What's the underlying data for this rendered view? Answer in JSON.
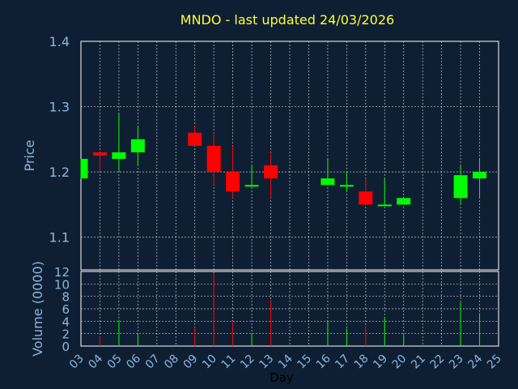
{
  "chart_data": {
    "type": "candlestick",
    "title": "MNDO - last updated 24/03/2026",
    "price_panel": {
      "ylabel": "Price",
      "ylim": [
        1.05,
        1.4
      ],
      "yticks": [
        "1.1",
        "1.2",
        "1.3",
        "1.4"
      ]
    },
    "volume_panel": {
      "ylabel": "Volume (0000)",
      "ylim": [
        0,
        12
      ],
      "yticks": [
        "0",
        "2",
        "4",
        "6",
        "8",
        "10",
        "12"
      ]
    },
    "xlabel": "Day",
    "x_tick_labels": [
      "03",
      "04",
      "05",
      "06",
      "07",
      "08",
      "09",
      "10",
      "11",
      "12",
      "13",
      "14",
      "15",
      "16",
      "17",
      "18",
      "19",
      "20",
      "21",
      "22",
      "23",
      "24",
      "25"
    ],
    "candles": [
      {
        "day": "03",
        "open": 1.19,
        "high": 1.22,
        "low": 1.19,
        "close": 1.22,
        "volume": 0.0
      },
      {
        "day": "04",
        "open": 1.23,
        "high": 1.23,
        "low": 1.2,
        "close": 1.225,
        "volume": 1.6
      },
      {
        "day": "05",
        "open": 1.22,
        "high": 1.29,
        "low": 1.2,
        "close": 1.23,
        "volume": 4.2
      },
      {
        "day": "06",
        "open": 1.23,
        "high": 1.27,
        "low": 1.21,
        "close": 1.25,
        "volume": 2.1
      },
      {
        "day": "09",
        "open": 1.26,
        "high": 1.27,
        "low": 1.24,
        "close": 1.24,
        "volume": 3.0
      },
      {
        "day": "10",
        "open": 1.24,
        "high": 1.26,
        "low": 1.18,
        "close": 1.2,
        "volume": 11.7
      },
      {
        "day": "11",
        "open": 1.2,
        "high": 1.24,
        "low": 1.16,
        "close": 1.17,
        "volume": 4.0
      },
      {
        "day": "12",
        "open": 1.18,
        "high": 1.21,
        "low": 1.18,
        "close": 1.18,
        "volume": 2.1
      },
      {
        "day": "13",
        "open": 1.21,
        "high": 1.23,
        "low": 1.16,
        "close": 1.19,
        "volume": 7.4
      },
      {
        "day": "16",
        "open": 1.18,
        "high": 1.22,
        "low": 1.18,
        "close": 1.19,
        "volume": 4.0
      },
      {
        "day": "17",
        "open": 1.18,
        "high": 1.2,
        "low": 1.17,
        "close": 1.18,
        "volume": 2.8
      },
      {
        "day": "18",
        "open": 1.17,
        "high": 1.19,
        "low": 1.15,
        "close": 1.15,
        "volume": 3.1
      },
      {
        "day": "19",
        "open": 1.15,
        "high": 1.19,
        "low": 1.15,
        "close": 1.15,
        "volume": 4.6
      },
      {
        "day": "20",
        "open": 1.15,
        "high": 1.16,
        "low": 1.15,
        "close": 1.16,
        "volume": 1.8
      },
      {
        "day": "23",
        "open": 1.16,
        "high": 1.21,
        "low": 1.15,
        "close": 1.195,
        "volume": 7.0
      },
      {
        "day": "24",
        "open": 1.19,
        "high": 1.22,
        "low": 1.16,
        "close": 1.2,
        "volume": 5.3
      }
    ],
    "up_color": "#00ff00",
    "down_color": "#ff0000",
    "grid": true
  }
}
